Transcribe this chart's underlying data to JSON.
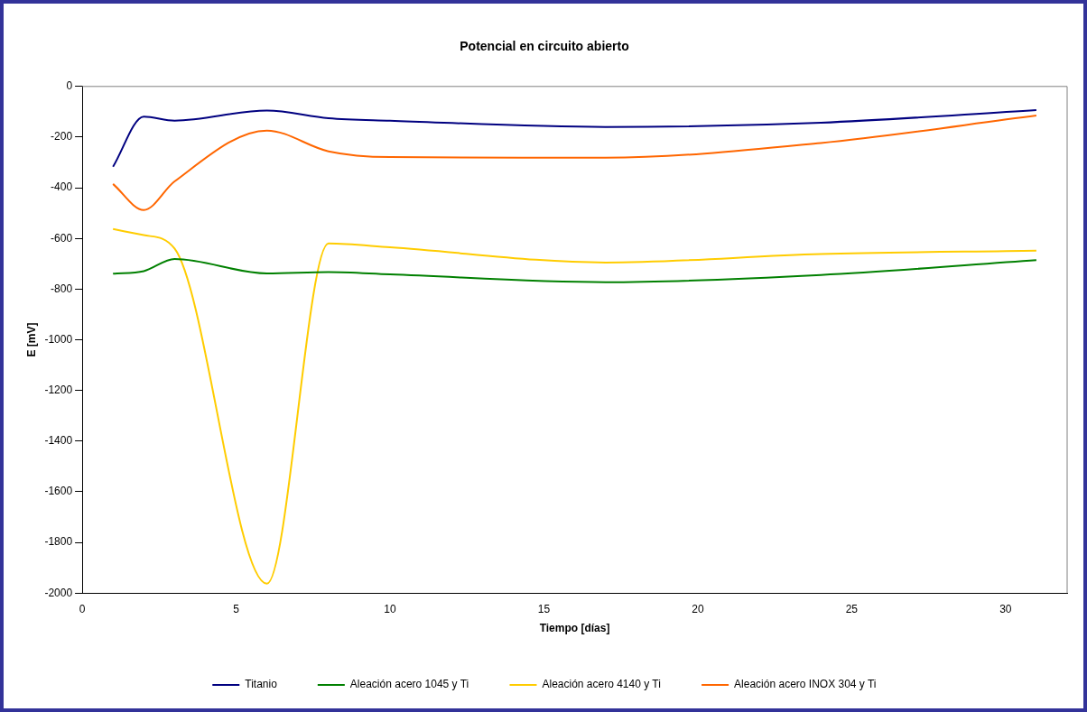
{
  "chart_data": {
    "type": "line",
    "title": "Potencial en circuito abierto",
    "xlabel": "Tiempo [días]",
    "ylabel": "E [mV]",
    "x": [
      1,
      2,
      3,
      6,
      8,
      10,
      17,
      24,
      31
    ],
    "xlim": [
      0,
      32
    ],
    "xticks": [
      0,
      5,
      10,
      15,
      20,
      25,
      30
    ],
    "ylim": [
      -2000,
      0
    ],
    "yticks": [
      -2000,
      -1800,
      -1600,
      -1400,
      -1200,
      -1000,
      -800,
      -600,
      -400,
      -200,
      0
    ],
    "grid": false,
    "legend": "bottom",
    "marker": "none",
    "line_style": "solid",
    "series": [
      {
        "name": "Titanio",
        "color": "#000080",
        "values": [
          -317,
          -119,
          -135,
          -95,
          -125,
          -135,
          -160,
          -143,
          -93
        ]
      },
      {
        "name": "Aleación acero 1045 y Ti",
        "color": "#008000",
        "values": [
          -739,
          -729,
          -681,
          -738,
          -733,
          -742,
          -773,
          -744,
          -686
        ]
      },
      {
        "name": "Aleación acero 4140 y Ti",
        "color": "#ffcc00",
        "values": [
          -563,
          -587,
          -640,
          -1963,
          -620,
          -635,
          -695,
          -662,
          -648
        ]
      },
      {
        "name": "Aleación acero INOX 304 y Ti",
        "color": "#ff6600",
        "values": [
          -385,
          -488,
          -375,
          -174,
          -256,
          -279,
          -281,
          -223,
          -115
        ]
      }
    ]
  }
}
